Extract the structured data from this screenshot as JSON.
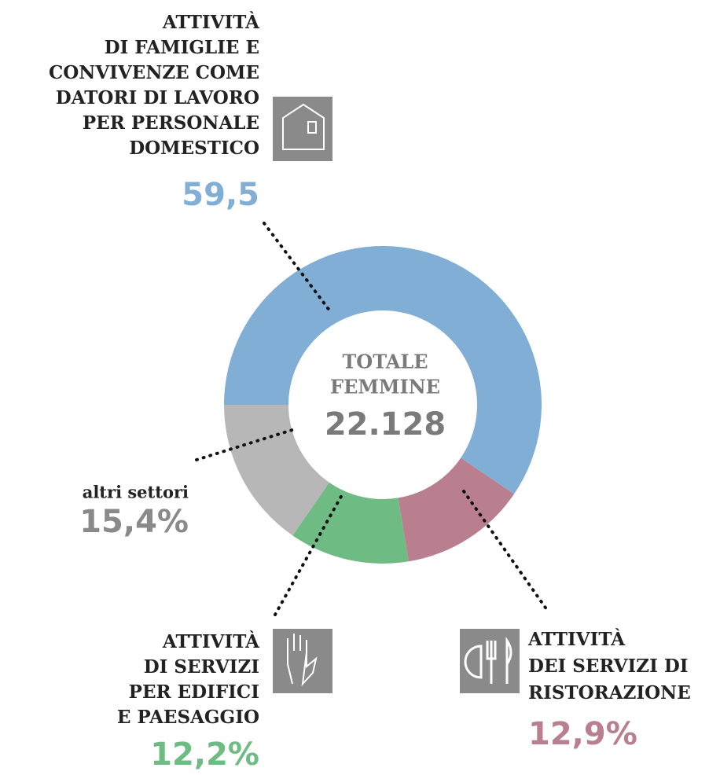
{
  "chart_data": {
    "type": "donut",
    "categories": [
      [
        "ATTIVITÀ",
        "DI FAMIGLIE E",
        "CONVIVENZE COME",
        "DATORI DI LAVORO",
        "PER PERSONALE",
        "DOMESTICO"
      ],
      [
        "ATTIVITÀ",
        "DEI SERVIZI DI",
        "RISTORAZIONE"
      ],
      [
        "ATTIVITÀ",
        "DI SERVIZI",
        "PER EDIFICI",
        "E PAESAGGIO"
      ],
      [
        "altri settori"
      ]
    ],
    "values": [
      59.5,
      12.9,
      12.2,
      15.4
    ],
    "value_labels": [
      "59,5",
      "12,9%",
      "12,2%",
      "15,4%"
    ],
    "colors": [
      "#80aed5",
      "#b97f8e",
      "#6fbb84",
      "#b7b7b7"
    ],
    "center_lines": [
      "TOTALE",
      "FEMMINE"
    ],
    "total_label": "22.128"
  }
}
